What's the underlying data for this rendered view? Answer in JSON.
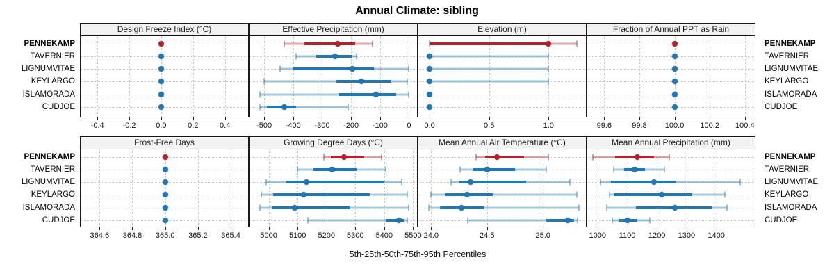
{
  "title": "Annual Climate: sibling",
  "xlabel": "5th-25th-50th-75th-95th Percentiles",
  "colors": {
    "highlight": "#b0232a",
    "normal": "#1f77b4",
    "grid": "#c9c9c9",
    "strip_bg": "#f2f2f2",
    "border": "#1a1a1a"
  },
  "chart_data": {
    "type": "dot",
    "subtype": "lattice-percentile-dotplot",
    "title": "Annual Climate: sibling",
    "xlabel": "5th-25th-50th-75th-95th Percentiles",
    "legend_position": "none",
    "grid": "dotted",
    "facet_grid_rows": 2,
    "facet_grid_cols": 4,
    "percentiles": [
      5,
      25,
      50,
      75,
      95
    ],
    "stations": [
      "PENNEKAMP",
      "TAVERNIER",
      "LIGNUMVITAE",
      "KEYLARGO",
      "ISLAMORADA",
      "CUDJOE"
    ],
    "highlight_station": "PENNEKAMP",
    "panels": [
      {
        "title": "Design Freeze Index (°C)",
        "domain": [
          -0.51,
          0.55
        ],
        "tick_values": [
          -0.4,
          -0.2,
          0.0,
          0.2,
          0.4
        ],
        "tick_labels": [
          "-0.4",
          "-0.2",
          "0.0",
          "0.2",
          "0.4"
        ],
        "series": [
          [
            0,
            0,
            0,
            0,
            0
          ],
          [
            0,
            0,
            0,
            0,
            0
          ],
          [
            0,
            0,
            0,
            0,
            0
          ],
          [
            0,
            0,
            0,
            0,
            0
          ],
          [
            0,
            0,
            0,
            0,
            0
          ],
          [
            0,
            0,
            0,
            0,
            0
          ]
        ]
      },
      {
        "title": "Effective Precipitation (mm)",
        "domain": [
          -553,
          30
        ],
        "tick_values": [
          -500,
          -400,
          -300,
          -200,
          -100,
          0
        ],
        "tick_labels": [
          "-500",
          "-400",
          "-300",
          "-200",
          "-100",
          "0"
        ],
        "series": [
          [
            -430,
            -360,
            -245,
            -185,
            -125
          ],
          [
            -390,
            -320,
            -255,
            -195,
            -182
          ],
          [
            -445,
            -400,
            -195,
            -120,
            -2
          ],
          [
            -500,
            -250,
            -165,
            -60,
            -5
          ],
          [
            -515,
            -240,
            -115,
            -45,
            0
          ],
          [
            -515,
            -490,
            -430,
            -390,
            -210
          ]
        ]
      },
      {
        "title": "Elevation (m)",
        "domain": [
          -0.1,
          1.32
        ],
        "tick_values": [
          0.0,
          0.5,
          1.0
        ],
        "tick_labels": [
          "0.0",
          "0.5",
          "1.0"
        ],
        "series": [
          [
            0,
            0,
            1,
            1,
            1.24
          ],
          [
            0,
            0,
            0,
            0,
            1
          ],
          [
            0,
            0,
            0,
            0,
            1
          ],
          [
            0,
            0,
            0,
            0,
            1
          ],
          [
            0,
            0,
            0,
            0,
            0
          ],
          [
            0,
            0,
            0,
            0,
            0
          ]
        ]
      },
      {
        "title": "Fraction of Annual PPT as Rain",
        "domain": [
          99.5,
          100.46
        ],
        "tick_values": [
          99.6,
          99.8,
          100.0,
          100.2,
          100.4
        ],
        "tick_labels": [
          "99.6",
          "99.8",
          "100.0",
          "100.2",
          "100.4"
        ],
        "series": [
          [
            100,
            100,
            100,
            100,
            100
          ],
          [
            100,
            100,
            100,
            100,
            100
          ],
          [
            100,
            100,
            100,
            100,
            100
          ],
          [
            100,
            100,
            100,
            100,
            100
          ],
          [
            100,
            100,
            100,
            100,
            100
          ],
          [
            100,
            100,
            100,
            100,
            100
          ]
        ]
      },
      {
        "title": "Frost-Free Days",
        "domain": [
          364.48,
          365.51
        ],
        "tick_values": [
          364.6,
          364.8,
          365.0,
          365.2,
          365.4
        ],
        "tick_labels": [
          "364.6",
          "364.8",
          "365.0",
          "365.2",
          "365.4"
        ],
        "series": [
          [
            365,
            365,
            365,
            365,
            365
          ],
          [
            365,
            365,
            365,
            365,
            365
          ],
          [
            365,
            365,
            365,
            365,
            365
          ],
          [
            365,
            365,
            365,
            365,
            365
          ],
          [
            365,
            365,
            365,
            365,
            365
          ],
          [
            365,
            365,
            365,
            365,
            365
          ]
        ]
      },
      {
        "title": "Growing Degree Days (°C)",
        "domain": [
          4931,
          5516
        ],
        "tick_values": [
          5000,
          5100,
          5200,
          5300,
          5400,
          5500
        ],
        "tick_labels": [
          "5000",
          "5100",
          "5200",
          "5300",
          "5400",
          "5500"
        ],
        "series": [
          [
            5190,
            5215,
            5260,
            5330,
            5390
          ],
          [
            5100,
            5155,
            5220,
            5305,
            5405
          ],
          [
            4990,
            5060,
            5130,
            5400,
            5460
          ],
          [
            4975,
            5015,
            5120,
            5350,
            5480
          ],
          [
            4970,
            5010,
            5090,
            5280,
            5485
          ],
          [
            5135,
            5405,
            5450,
            5470,
            5480
          ]
        ]
      },
      {
        "title": "Mean Annual Air Temperature (°C)",
        "domain": [
          23.88,
          25.39
        ],
        "tick_values": [
          24.0,
          24.5,
          25.0
        ],
        "tick_labels": [
          "24.0",
          "24.5",
          "25.0"
        ],
        "series": [
          [
            24.4,
            24.48,
            24.59,
            24.83,
            25.05
          ],
          [
            24.26,
            24.38,
            24.5,
            24.75,
            25.03
          ],
          [
            24.18,
            24.25,
            24.35,
            24.85,
            25.24
          ],
          [
            24.0,
            24.12,
            24.32,
            24.55,
            25.3
          ],
          [
            23.98,
            24.08,
            24.27,
            24.47,
            25.32
          ],
          [
            24.33,
            25.03,
            25.22,
            25.28,
            25.31
          ]
        ]
      },
      {
        "title": "Mean Annual Precipitation (mm)",
        "domain": [
          963,
          1532
        ],
        "tick_values": [
          1000,
          1100,
          1200,
          1300,
          1400
        ],
        "tick_labels": [
          "1000",
          "1100",
          "1200",
          "1300",
          "1400"
        ],
        "series": [
          [
            985,
            1060,
            1135,
            1190,
            1242
          ],
          [
            1055,
            1090,
            1125,
            1160,
            1225
          ],
          [
            1010,
            1045,
            1190,
            1265,
            1480
          ],
          [
            1040,
            1055,
            1215,
            1320,
            1430
          ],
          [
            1030,
            1130,
            1260,
            1385,
            1435
          ],
          [
            1050,
            1070,
            1100,
            1135,
            1175
          ]
        ]
      }
    ]
  }
}
